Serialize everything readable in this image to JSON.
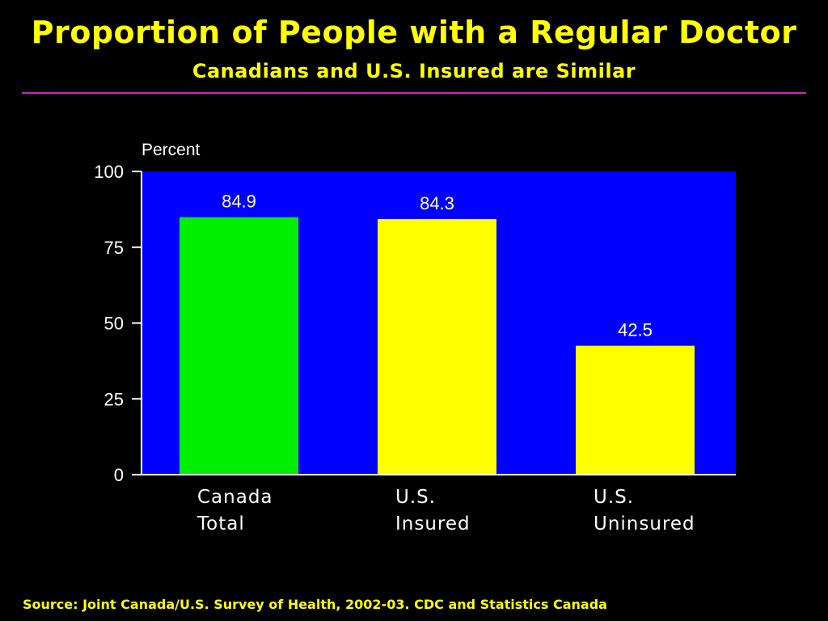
{
  "slide": {
    "title": "Proportion of People with a Regular Doctor",
    "subtitle": "Canadians and U.S. Insured are Similar",
    "source": "Source: Joint Canada/U.S. Survey of Health, 2002-03.  CDC and Statistics Canada"
  },
  "colors": {
    "background": "#000000",
    "plot_area": "#0000ff",
    "title_text": "#ffff00",
    "divider": "#cc22cc",
    "axis": "#ffffff",
    "bar_canada": "#00ee00",
    "bar_us": "#ffff00"
  },
  "chart_data": {
    "type": "bar",
    "title": "",
    "ylabel": "Percent",
    "xlabel": "",
    "ylim": [
      0,
      100
    ],
    "yticks": [
      0,
      25,
      50,
      75,
      100
    ],
    "grid": false,
    "categories": [
      [
        "Canada",
        "Total"
      ],
      [
        "U.S.",
        "Insured"
      ],
      [
        "U.S.",
        "Uninsured"
      ]
    ],
    "values": [
      84.9,
      84.3,
      42.5
    ],
    "data_labels": [
      "84.9",
      "84.3",
      "42.5"
    ],
    "bar_colors": [
      "#00ee00",
      "#ffff00",
      "#ffff00"
    ]
  }
}
